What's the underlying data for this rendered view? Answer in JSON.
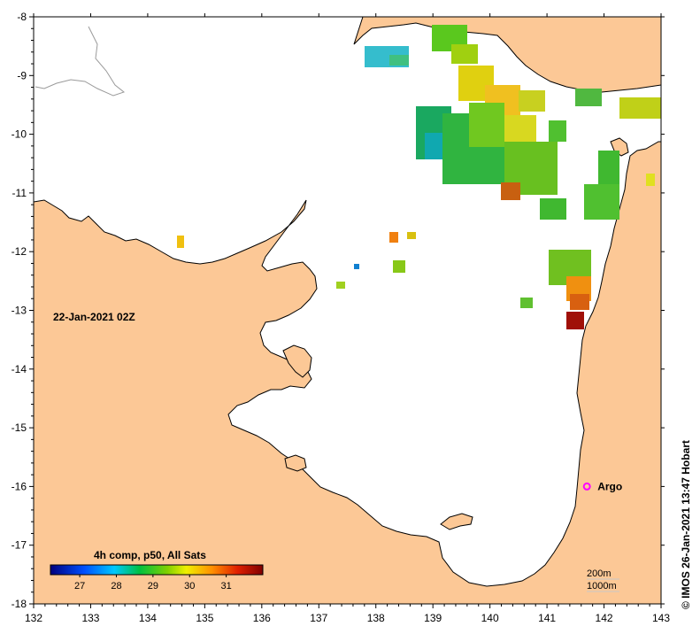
{
  "map": {
    "date_label": "22-Jan-2021 02Z",
    "credit": "© IMOS 26-Jan-2021 13:47 Hobart",
    "x_ticks": [
      "132",
      "133",
      "134",
      "135",
      "136",
      "137",
      "138",
      "139",
      "140",
      "141",
      "142",
      "143"
    ],
    "y_ticks": [
      "-8",
      "-9",
      "-10",
      "-11",
      "-12",
      "-13",
      "-14",
      "-15",
      "-16",
      "-17",
      "-18"
    ],
    "lon_range": [
      132,
      143
    ],
    "lat_range": [
      -18,
      -8
    ],
    "argo": {
      "label": "Argo",
      "lon": 141.7,
      "lat": -16.0,
      "color": "#ff00ff"
    },
    "depth_contours": [
      "200m",
      "1000m"
    ],
    "colorbar": {
      "title": "4h comp, p50, All Sats",
      "ticks": [
        "27",
        "28",
        "29",
        "30",
        "31"
      ],
      "range": [
        26.2,
        32.0
      ]
    },
    "colors": {
      "land": "#fcc896",
      "ocean": "#ffffff",
      "coast": "#000000"
    }
  }
}
